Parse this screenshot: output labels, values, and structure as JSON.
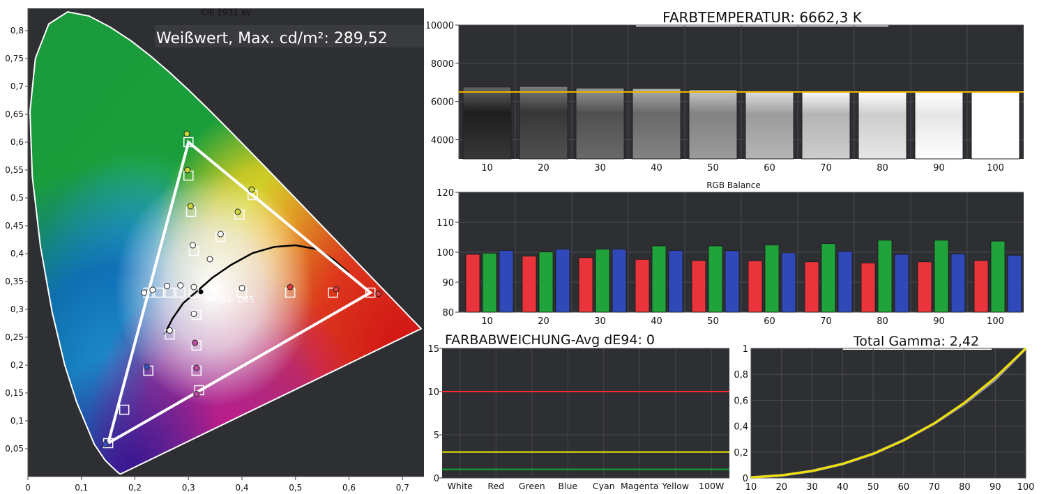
{
  "chart_data": [
    {
      "id": "cie",
      "type": "scatter",
      "title": "CIE 1931 xy",
      "overlay_text": "Weißwert, Max. cd/m²: 289,52",
      "white_label": "WEISS: D65",
      "xlim": [
        0,
        0.74
      ],
      "ylim": [
        0,
        0.84
      ],
      "x_ticks": [
        "0",
        "0,1",
        "0,2",
        "0,3",
        "0,4",
        "0,5",
        "0,6",
        "0,7"
      ],
      "y_ticks": [
        "0,05",
        "0,1",
        "0,15",
        "0,2",
        "0,25",
        "0,3",
        "0,35",
        "0,4",
        "0,45",
        "0,5",
        "0,55",
        "0,6",
        "0,65",
        "0,7",
        "0,75",
        "0,8"
      ],
      "gamut_target": [
        [
          0.64,
          0.33
        ],
        [
          0.3,
          0.6
        ],
        [
          0.15,
          0.06
        ]
      ],
      "targets": [
        [
          0.3,
          0.6
        ],
        [
          0.3,
          0.54
        ],
        [
          0.305,
          0.475
        ],
        [
          0.31,
          0.405
        ],
        [
          0.42,
          0.505
        ],
        [
          0.395,
          0.47
        ],
        [
          0.36,
          0.43
        ],
        [
          0.64,
          0.33
        ],
        [
          0.57,
          0.33
        ],
        [
          0.49,
          0.33
        ],
        [
          0.4,
          0.33
        ],
        [
          0.15,
          0.06
        ],
        [
          0.18,
          0.12
        ],
        [
          0.225,
          0.19
        ],
        [
          0.265,
          0.255
        ],
        [
          0.31,
          0.33
        ],
        [
          0.315,
          0.29
        ],
        [
          0.315,
          0.235
        ],
        [
          0.315,
          0.19
        ],
        [
          0.32,
          0.155
        ],
        [
          0.225,
          0.33
        ],
        [
          0.245,
          0.33
        ],
        [
          0.265,
          0.33
        ],
        [
          0.285,
          0.33
        ]
      ],
      "measured": [
        [
          0.297,
          0.615
        ],
        [
          0.298,
          0.55
        ],
        [
          0.304,
          0.485
        ],
        [
          0.308,
          0.415
        ],
        [
          0.418,
          0.515
        ],
        [
          0.392,
          0.475
        ],
        [
          0.36,
          0.435
        ],
        [
          0.34,
          0.39
        ],
        [
          0.655,
          0.328
        ],
        [
          0.576,
          0.336
        ],
        [
          0.49,
          0.34
        ],
        [
          0.4,
          0.338
        ],
        [
          0.145,
          0.058
        ],
        [
          0.222,
          0.197
        ],
        [
          0.265,
          0.262
        ],
        [
          0.31,
          0.292
        ],
        [
          0.312,
          0.24
        ],
        [
          0.315,
          0.195
        ],
        [
          0.315,
          0.148
        ],
        [
          0.217,
          0.33
        ],
        [
          0.233,
          0.335
        ],
        [
          0.26,
          0.342
        ],
        [
          0.285,
          0.343
        ],
        [
          0.31,
          0.34
        ]
      ],
      "white_point": [
        0.3127,
        0.329
      ]
    },
    {
      "id": "ct",
      "type": "bar",
      "title": "FARBTEMPERATUR: 6662,3 K",
      "categories": [
        "10",
        "20",
        "30",
        "40",
        "50",
        "60",
        "70",
        "80",
        "90",
        "100"
      ],
      "values": [
        6760,
        6790,
        6700,
        6680,
        6610,
        6560,
        6560,
        6530,
        6510,
        6500
      ],
      "target": 6500,
      "ylim": [
        3000,
        10000
      ],
      "y_ticks": [
        "4000",
        "6000",
        "8000",
        "10000"
      ]
    },
    {
      "id": "rgb",
      "type": "bar",
      "title": "RGB Balance",
      "categories": [
        "10",
        "20",
        "30",
        "40",
        "50",
        "60",
        "70",
        "80",
        "90",
        "100"
      ],
      "series": [
        {
          "color": "#e8343a",
          "values": [
            99.3,
            98.7,
            98.2,
            97.6,
            97.2,
            97.1,
            96.8,
            96.4,
            96.8,
            97.2
          ]
        },
        {
          "color": "#1fa33a",
          "values": [
            99.7,
            100.1,
            101.0,
            102.1,
            102.1,
            102.4,
            102.9,
            104.0,
            104.0,
            103.7
          ]
        },
        {
          "color": "#2f49b8",
          "values": [
            100.6,
            101.0,
            101.0,
            100.6,
            100.5,
            99.8,
            100.3,
            99.3,
            99.4,
            99.0
          ]
        }
      ],
      "ylim": [
        80,
        120
      ],
      "y_ticks": [
        "80",
        "90",
        "100",
        "110",
        "120"
      ]
    },
    {
      "id": "de",
      "type": "line",
      "title": "FARBABWEICHUNG-Avg dE94: 0",
      "categories": [
        "White",
        "Red",
        "Green",
        "Blue",
        "Cyan",
        "Magenta",
        "Yellow",
        "100W"
      ],
      "threshold_lines": [
        {
          "value": 10,
          "color": "#ff2a2a"
        },
        {
          "value": 3,
          "color": "#e8e400"
        },
        {
          "value": 1,
          "color": "#14a82e"
        }
      ],
      "values": [
        0,
        0,
        0,
        0,
        0,
        0,
        0,
        0
      ],
      "ylim": [
        0,
        15
      ],
      "y_ticks": [
        "0",
        "5",
        "10",
        "15"
      ]
    },
    {
      "id": "gamma",
      "type": "line",
      "title": "Total Gamma: 2,42",
      "x": [
        10,
        20,
        30,
        40,
        50,
        60,
        70,
        80,
        90,
        100
      ],
      "series": [
        {
          "color": "#9a9a9a",
          "values": [
            0.004,
            0.02,
            0.054,
            0.108,
            0.186,
            0.292,
            0.42,
            0.575,
            0.76,
            1.0
          ]
        },
        {
          "color": "#f0e000",
          "values": [
            0.004,
            0.021,
            0.054,
            0.109,
            0.187,
            0.29,
            0.422,
            0.583,
            0.775,
            1.0
          ]
        }
      ],
      "xlim": [
        10,
        100
      ],
      "ylim": [
        0,
        1
      ],
      "x_ticks": [
        "10",
        "20",
        "30",
        "40",
        "50",
        "60",
        "70",
        "80",
        "90",
        "100"
      ],
      "y_ticks": [
        "0",
        "0,2",
        "0,4",
        "0,6",
        "0,8",
        "1"
      ]
    }
  ]
}
